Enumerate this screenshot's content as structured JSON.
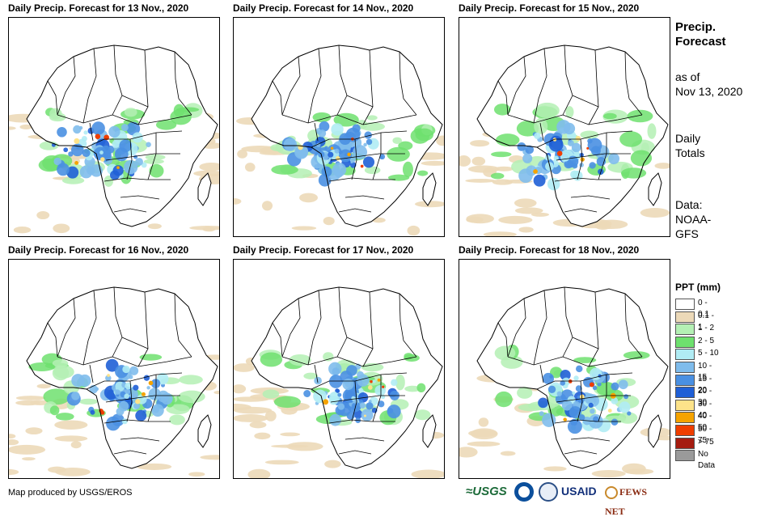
{
  "panels": [
    {
      "title": "Daily Precip. Forecast for 13 Nov., 2020",
      "day": 0
    },
    {
      "title": "Daily Precip. Forecast for 14 Nov., 2020",
      "day": 1
    },
    {
      "title": "Daily Precip. Forecast for 15 Nov., 2020",
      "day": 2
    },
    {
      "title": "Daily Precip. Forecast for 16 Nov., 2020",
      "day": 3
    },
    {
      "title": "Daily Precip. Forecast for 17 Nov., 2020",
      "day": 4
    },
    {
      "title": "Daily Precip. Forecast for 18 Nov., 2020",
      "day": 5
    }
  ],
  "side": {
    "title_line1": "Precip.",
    "title_line2": "Forecast",
    "asof_line1": "as of",
    "asof_line2": "Nov 13, 2020",
    "totals_line1": "Daily",
    "totals_line2": "Totals",
    "data_line1": "Data:",
    "data_line2": "NOAA-",
    "data_line3": "GFS"
  },
  "legend": {
    "title": "PPT (mm)",
    "items": [
      {
        "label": "0 - 0.1",
        "color": "#ffffff"
      },
      {
        "label": "0.1 - 1",
        "color": "#ecd9b8"
      },
      {
        "label": "1 - 2",
        "color": "#b4f0b4"
      },
      {
        "label": "2 - 5",
        "color": "#6ee06e"
      },
      {
        "label": "5 - 10",
        "color": "#b0ecf4"
      },
      {
        "label": "10 - 15",
        "color": "#7fbcec"
      },
      {
        "label": "15 - 20",
        "color": "#4a90e2"
      },
      {
        "label": "20 - 30",
        "color": "#1f5fd6"
      },
      {
        "label": "30 - 40",
        "color": "#fde38a"
      },
      {
        "label": "40 - 50",
        "color": "#f5a300"
      },
      {
        "label": "50 - 75",
        "color": "#ef3e00"
      },
      {
        "label": "> 75",
        "color": "#a51c10"
      },
      {
        "label": "No Data",
        "color": "#9a9a9a"
      }
    ]
  },
  "credit": "Map produced by USGS/EROS",
  "logos": {
    "usgs": "≈USGS",
    "usaid": "USAID",
    "fews": "FEWS NET"
  }
}
